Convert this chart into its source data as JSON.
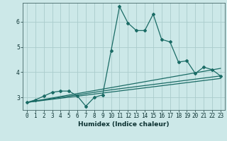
{
  "title": "",
  "xlabel": "Humidex (Indice chaleur)",
  "bg_color": "#cce8e8",
  "grid_color": "#aacccc",
  "line_color": "#1a6b65",
  "xlim": [
    -0.5,
    23.5
  ],
  "ylim": [
    2.5,
    6.75
  ],
  "xticks": [
    0,
    1,
    2,
    3,
    4,
    5,
    6,
    7,
    8,
    9,
    10,
    11,
    12,
    13,
    14,
    15,
    16,
    17,
    18,
    19,
    20,
    21,
    22,
    23
  ],
  "yticks": [
    3,
    4,
    5,
    6
  ],
  "series1_x": [
    0,
    1,
    2,
    3,
    4,
    5,
    6,
    7,
    8,
    9,
    10,
    11,
    12,
    13,
    14,
    15,
    16,
    17,
    18,
    19,
    20,
    21,
    22,
    23
  ],
  "series1_y": [
    2.8,
    2.9,
    3.05,
    3.2,
    3.25,
    3.25,
    3.05,
    2.65,
    3.0,
    3.1,
    4.85,
    6.6,
    5.95,
    5.65,
    5.65,
    6.3,
    5.3,
    5.2,
    4.4,
    4.45,
    3.95,
    4.2,
    4.1,
    3.85
  ],
  "series2_x": [
    0,
    23
  ],
  "series2_y": [
    2.8,
    4.15
  ],
  "series3_x": [
    0,
    23
  ],
  "series3_y": [
    2.8,
    3.75
  ],
  "series4_x": [
    0,
    10,
    23
  ],
  "series4_y": [
    2.8,
    3.3,
    3.85
  ]
}
